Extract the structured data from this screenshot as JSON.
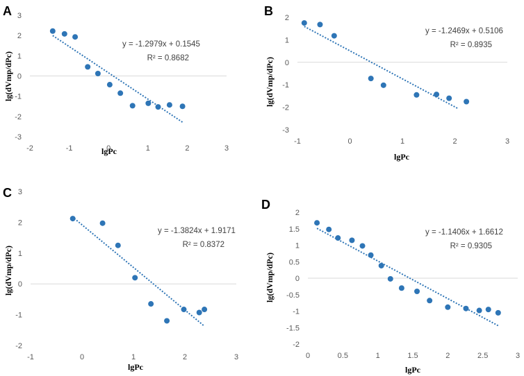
{
  "chart_data": [
    {
      "type": "scatter",
      "label": "A",
      "xlabel": "lgPc",
      "ylabel": "lg(dVmp/dPc)",
      "xlim": [
        -2,
        3
      ],
      "ylim": [
        -3,
        3
      ],
      "xticks": [
        -2,
        -1,
        0,
        1,
        2,
        3
      ],
      "yticks": [
        -3,
        -2,
        -1,
        0,
        1,
        2,
        3
      ],
      "points": [
        [
          -1.42,
          2.22
        ],
        [
          -1.12,
          2.08
        ],
        [
          -0.85,
          1.93
        ],
        [
          -0.53,
          0.45
        ],
        [
          -0.27,
          0.12
        ],
        [
          0.03,
          -0.43
        ],
        [
          0.3,
          -0.85
        ],
        [
          0.61,
          -1.47
        ],
        [
          1.01,
          -1.35
        ],
        [
          1.26,
          -1.53
        ],
        [
          1.55,
          -1.43
        ],
        [
          1.88,
          -1.5
        ]
      ],
      "trendline": {
        "slope": -1.2979,
        "intercept": 0.1545,
        "x_range": [
          -1.42,
          1.88
        ],
        "dotted": true
      },
      "equation": "y = -1.2979x + 0.1545",
      "r2": "R² = 0.8682"
    },
    {
      "type": "scatter",
      "label": "B",
      "xlabel": "lgPc",
      "ylabel": "lg(dVmp/dPc)",
      "xlim": [
        -1,
        3
      ],
      "ylim": [
        -3,
        2
      ],
      "xticks": [
        -1,
        0,
        1,
        2,
        3
      ],
      "yticks": [
        -3,
        -2,
        -1,
        0,
        1,
        2
      ],
      "points": [
        [
          -0.87,
          1.75
        ],
        [
          -0.57,
          1.68
        ],
        [
          -0.3,
          1.18
        ],
        [
          0.4,
          -0.72
        ],
        [
          0.64,
          -1.02
        ],
        [
          1.27,
          -1.45
        ],
        [
          1.65,
          -1.43
        ],
        [
          1.89,
          -1.6
        ],
        [
          2.22,
          -1.75
        ]
      ],
      "trendline": {
        "slope": -1.2469,
        "intercept": 0.5106,
        "x_range": [
          -0.87,
          2.05
        ],
        "dotted": true
      },
      "equation": "y = -1.2469x + 0.5106",
      "r2": "R² = 0.8935"
    },
    {
      "type": "scatter",
      "label": "C",
      "xlabel": "lgPc",
      "ylabel": "lg(dVmp/dPc)",
      "xlim": [
        -1,
        3
      ],
      "ylim": [
        -2,
        3
      ],
      "xticks": [
        -1,
        0,
        1,
        2,
        3
      ],
      "yticks": [
        -2,
        -1,
        0,
        1,
        2,
        3
      ],
      "points": [
        [
          -0.18,
          2.12
        ],
        [
          0.4,
          1.97
        ],
        [
          0.7,
          1.25
        ],
        [
          1.03,
          0.2
        ],
        [
          1.34,
          -0.65
        ],
        [
          1.65,
          -1.2
        ],
        [
          1.98,
          -0.83
        ],
        [
          2.28,
          -0.93
        ],
        [
          2.38,
          -0.83
        ]
      ],
      "trendline": {
        "slope": -1.3824,
        "intercept": 1.9171,
        "x_range": [
          -0.15,
          2.38
        ],
        "dotted": true
      },
      "equation": "y = -1.3824x + 1.9171",
      "r2": "R² = 0.8372"
    },
    {
      "type": "scatter",
      "label": "D",
      "xlabel": "lgPc",
      "ylabel": "lg(dVmp/dPc)",
      "xlim": [
        0,
        3
      ],
      "ylim": [
        -2,
        2
      ],
      "xticks": [
        0,
        0.5,
        1,
        1.5,
        2,
        2.5,
        3
      ],
      "xtick_labels": [
        "0",
        "0.5",
        "1",
        "1.5",
        "2",
        "2.5",
        "3"
      ],
      "yticks": [
        -2,
        -1.5,
        -1,
        -0.5,
        0,
        0.5,
        1,
        1.5,
        2
      ],
      "ytick_labels": [
        "-2",
        "-1.5",
        "-1",
        "-0.5",
        "0",
        "0.5",
        "1",
        "1.5",
        "2"
      ],
      "points": [
        [
          0.13,
          1.68
        ],
        [
          0.3,
          1.48
        ],
        [
          0.43,
          1.22
        ],
        [
          0.63,
          1.15
        ],
        [
          0.78,
          0.98
        ],
        [
          0.9,
          0.7
        ],
        [
          1.05,
          0.38
        ],
        [
          1.18,
          -0.02
        ],
        [
          1.34,
          -0.3
        ],
        [
          1.56,
          -0.4
        ],
        [
          1.74,
          -0.68
        ],
        [
          2.0,
          -0.88
        ],
        [
          2.26,
          -0.92
        ],
        [
          2.45,
          -0.98
        ],
        [
          2.58,
          -0.95
        ],
        [
          2.72,
          -1.05
        ]
      ],
      "trendline": {
        "slope": -1.1406,
        "intercept": 1.6612,
        "x_range": [
          0.13,
          2.72
        ],
        "dotted": true
      },
      "equation": "y = -1.1406x + 1.6612",
      "r2": "R² = 0.9305"
    }
  ]
}
